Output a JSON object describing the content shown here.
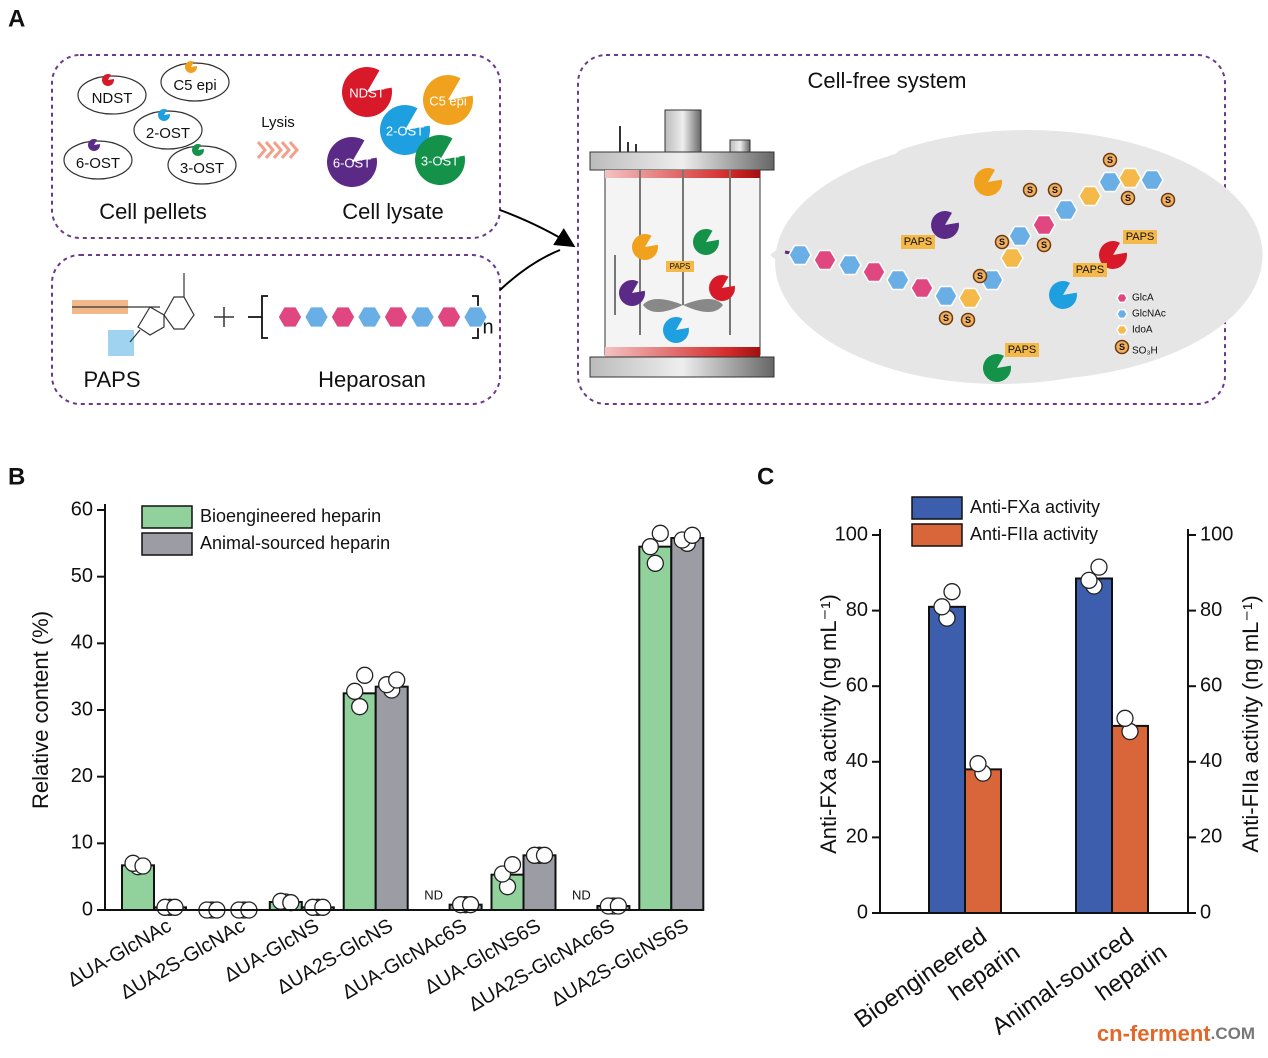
{
  "panel_labels": {
    "a": "A",
    "b": "B",
    "c": "C"
  },
  "panel_a": {
    "enzymes": [
      "NDST",
      "C5 epi",
      "2-OST",
      "6-OST",
      "3-OST"
    ],
    "lysis": "Lysis",
    "cell_pellets": "Cell pellets",
    "cell_lysate": "Cell lysate",
    "paps": "PAPS",
    "heparosan": "Heparosan",
    "repeat": "n",
    "cell_free": "Cell-free system",
    "sulfo": "S",
    "legend": [
      "GlcA",
      "GlcNAc",
      "IdoA",
      "SO₃H"
    ]
  },
  "chart_data": [
    {
      "type": "bar",
      "ylabel": "Relative content (%)",
      "categories": [
        "ΔUA-GlcNAc",
        "ΔUA2S-GlcNAc",
        "ΔUA-GlcNS",
        "ΔUA2S-GlcNS",
        "ΔUA-GlcNAc6S",
        "ΔUA-GlcNS6S",
        "ΔUA2S-GlcNAc6S",
        "ΔUA2S-GlcNS6S"
      ],
      "series": [
        {
          "name": "Bioengineered heparin",
          "color": "#90d19c",
          "values": [
            6.7,
            0,
            1.2,
            32.5,
            null,
            5.3,
            null,
            54.5
          ],
          "value_labels": [
            null,
            null,
            null,
            null,
            "ND",
            null,
            "ND",
            null
          ],
          "replicates": [
            [
              6.5,
              7.0,
              6.6
            ],
            [
              0,
              0,
              0
            ],
            [
              1.2,
              1.3,
              1.1
            ],
            [
              30.5,
              32.8,
              35.2
            ],
            [],
            [
              3.5,
              5.4,
              6.8
            ],
            [],
            [
              52.0,
              54.5,
              56.5
            ]
          ]
        },
        {
          "name": "Animal-sourced heparin",
          "color": "#9c9ca4",
          "values": [
            0.4,
            0,
            0.4,
            33.5,
            0.8,
            8.2,
            0.6,
            55.8
          ],
          "replicates": [
            [
              0.4,
              0.4,
              0.4
            ],
            [
              0,
              0,
              0
            ],
            [
              0.4,
              0.4,
              0.4
            ],
            [
              33.0,
              33.8,
              34.5
            ],
            [
              0.8,
              0.8,
              0.8
            ],
            [
              8.2,
              8.2,
              8.2
            ],
            [
              0.6,
              0.6,
              0.6
            ],
            [
              55.0,
              55.5,
              56.2
            ]
          ]
        }
      ],
      "ylim": [
        0,
        60
      ],
      "yticks": [
        0,
        10,
        20,
        30,
        40,
        50,
        60
      ],
      "legend": "upper left"
    },
    {
      "type": "bar",
      "ylabel": "Anti-FXa activity (ng mL⁻¹)",
      "y2label": "Anti-FIIa activity (ng mL⁻¹)",
      "categories": [
        "Bioengineered heparin",
        "Animal-sourced heparin"
      ],
      "series": [
        {
          "name": "Anti-FXa activity",
          "color": "#3d5eac",
          "axis": "y",
          "values": [
            81,
            88.5
          ],
          "replicates": [
            [
              78,
              81,
              85
            ],
            [
              86.5,
              88,
              91.5
            ]
          ]
        },
        {
          "name": "Anti-FIIa activity",
          "color": "#d9663a",
          "axis": "y2",
          "values": [
            38,
            49.5
          ],
          "replicates": [
            [
              37,
              39.5
            ],
            [
              48,
              51.5
            ]
          ]
        }
      ],
      "ylim": [
        0,
        100
      ],
      "yticks": [
        0,
        20,
        40,
        60,
        80,
        100
      ],
      "y2lim": [
        0,
        100
      ],
      "y2ticks": [
        0,
        20,
        40,
        60,
        80,
        100
      ],
      "legend": "upper left"
    }
  ],
  "watermark": [
    "cn-ferment",
    ".COM"
  ]
}
